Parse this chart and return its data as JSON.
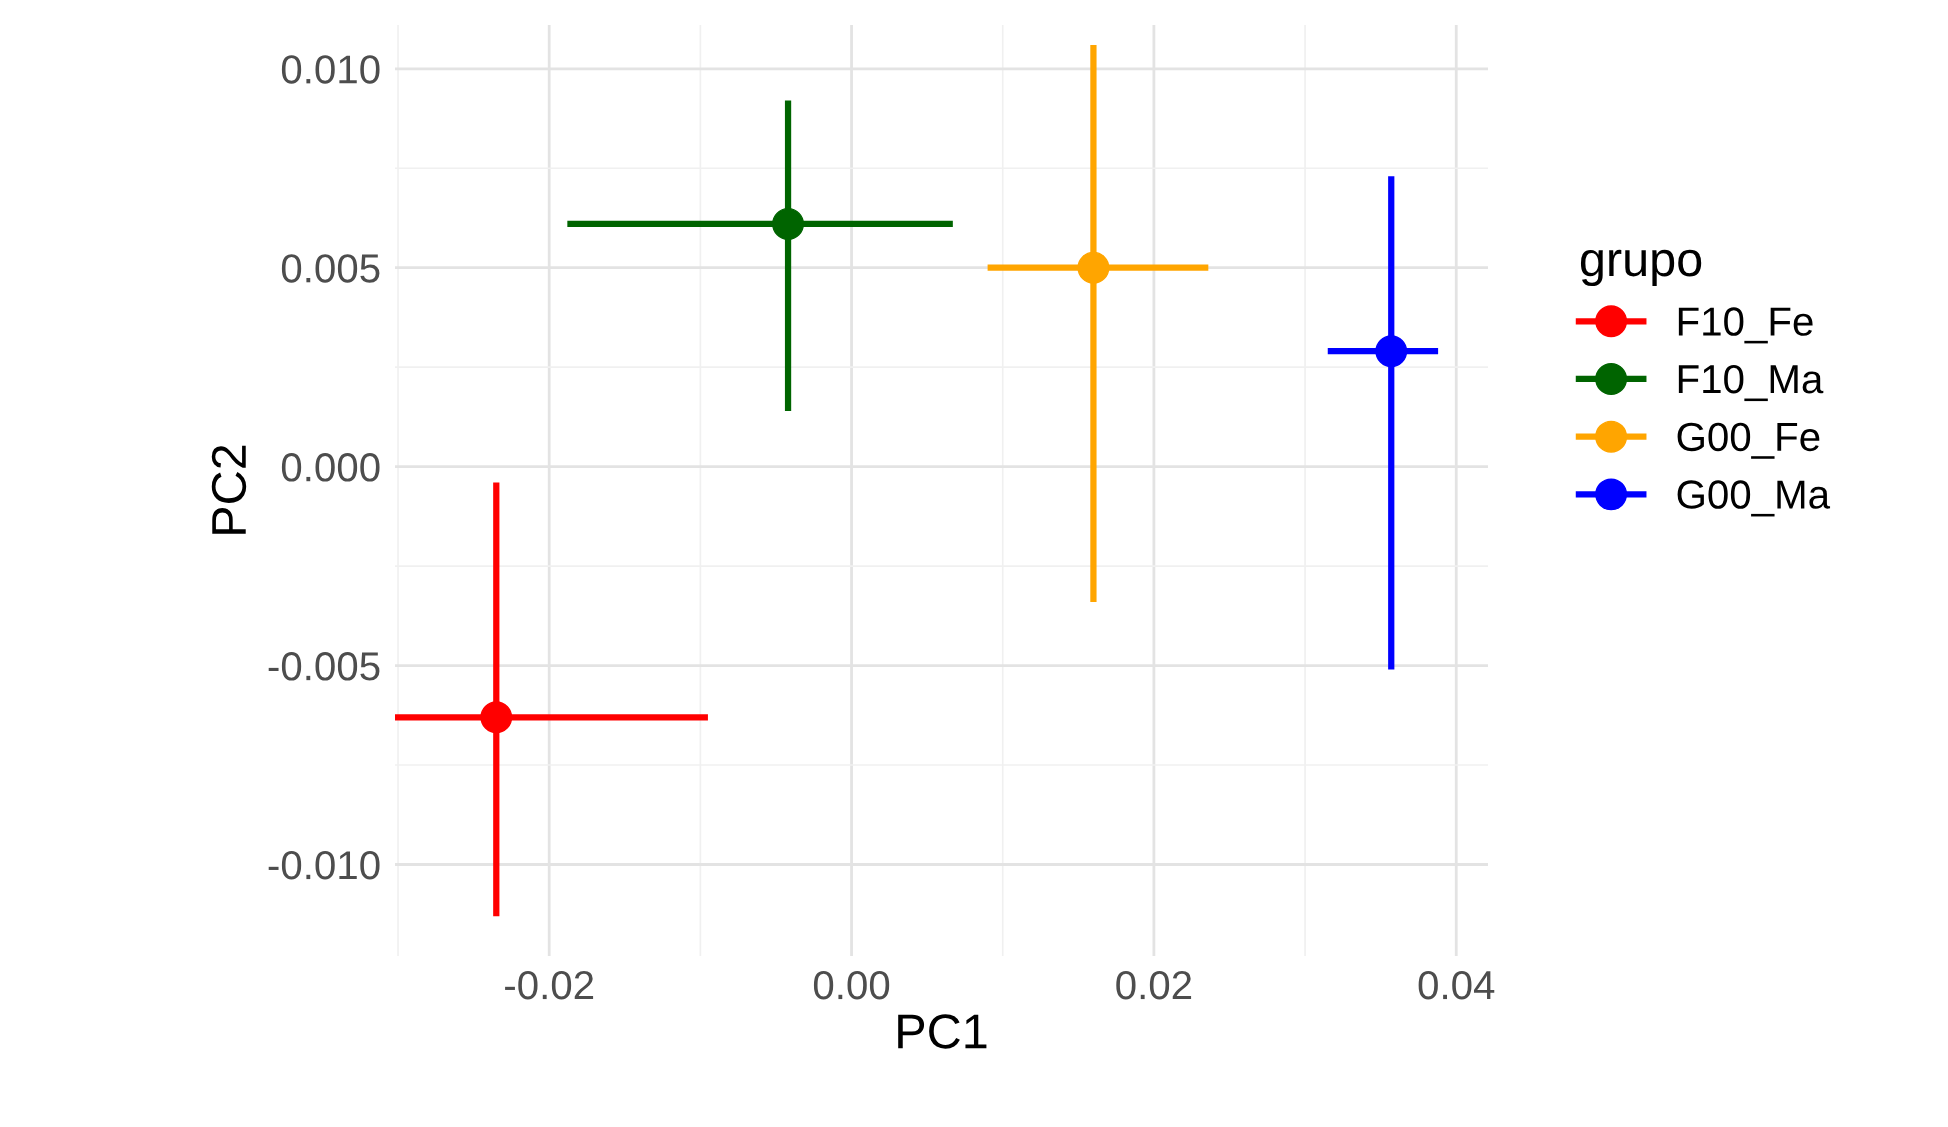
{
  "chart_data": {
    "type": "scatter",
    "xlabel": "PC1",
    "ylabel": "PC2",
    "legend_title": "grupo",
    "legend": "right",
    "grid": true,
    "marker": "circle",
    "xlim": [
      -0.0302,
      0.0421
    ],
    "ylim": [
      -0.0123,
      0.0111
    ],
    "xticks": [
      {
        "value": -0.02,
        "label": "-0.02"
      },
      {
        "value": 0.0,
        "label": "0.00"
      },
      {
        "value": 0.02,
        "label": "0.02"
      },
      {
        "value": 0.04,
        "label": "0.04"
      }
    ],
    "yticks": [
      {
        "value": -0.01,
        "label": "-0.010"
      },
      {
        "value": -0.005,
        "label": "-0.005"
      },
      {
        "value": 0.0,
        "label": "0.000"
      },
      {
        "value": 0.005,
        "label": "0.005"
      },
      {
        "value": 0.01,
        "label": "0.010"
      }
    ],
    "series": [
      {
        "name": "F10_Fe",
        "color": "#ff0000",
        "x": [
          -0.0235
        ],
        "values": [
          -0.0063
        ],
        "errors": [
          [
            -0.0004,
            -0.0113
          ]
        ],
        "xerrors": [
          [
            -0.0302,
            -0.0095
          ]
        ]
      },
      {
        "name": "F10_Ma",
        "color": "#006400",
        "x": [
          -0.0042
        ],
        "values": [
          0.0061
        ],
        "errors": [
          [
            0.0014,
            0.0092
          ]
        ],
        "xerrors": [
          [
            -0.0188,
            0.0067
          ]
        ]
      },
      {
        "name": "G00_Fe",
        "color": "#ffa500",
        "x": [
          0.016
        ],
        "values": [
          0.005
        ],
        "errors": [
          [
            -0.0034,
            0.0106
          ]
        ],
        "xerrors": [
          [
            0.009,
            0.0236
          ]
        ]
      },
      {
        "name": "G00_Ma",
        "color": "#0000ff",
        "x": [
          0.0357
        ],
        "values": [
          0.0029
        ],
        "errors": [
          [
            -0.0051,
            0.0073
          ]
        ],
        "xerrors": [
          [
            0.0315,
            0.0388
          ]
        ]
      }
    ]
  }
}
